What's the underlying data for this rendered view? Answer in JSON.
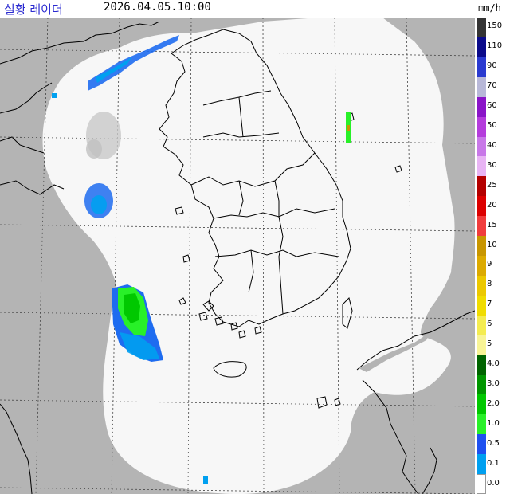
{
  "header": {
    "title": "실황 레이더",
    "timestamp": "2026.04.05.10:00",
    "unit": "mm/h"
  },
  "map": {
    "outside_color": "#b4b4b4",
    "coverage_color": "#f7f7f7",
    "coastline_color": "#000000",
    "grid_color": "#444444",
    "echoes": [
      {
        "name": "echo-northwest-sea",
        "intensity": "0.1–0.5",
        "color": "#1e6cf0"
      },
      {
        "name": "echo-west-sea",
        "intensity": "0.5",
        "color": "#1e6cf0"
      },
      {
        "name": "echo-southwest-sea",
        "intensity": "1.0–2.0",
        "color": "#22cc22"
      },
      {
        "name": "echo-east-sea-small",
        "intensity": "1.0",
        "color": "#22cc22"
      },
      {
        "name": "echo-south",
        "intensity": "0.1",
        "color": "#0aa0f0"
      }
    ]
  },
  "legend": {
    "levels": [
      {
        "label": "150",
        "color": "#333333"
      },
      {
        "label": "110",
        "color": "#0a0a8a"
      },
      {
        "label": "90",
        "color": "#2a3ad0"
      },
      {
        "label": "70",
        "color": "#b8b8d8"
      },
      {
        "label": "60",
        "color": "#8a14c8"
      },
      {
        "label": "50",
        "color": "#b43cdc"
      },
      {
        "label": "40",
        "color": "#c878e8"
      },
      {
        "label": "30",
        "color": "#e8b4f4"
      },
      {
        "label": "25",
        "color": "#b40000"
      },
      {
        "label": "20",
        "color": "#dc0000"
      },
      {
        "label": "15",
        "color": "#f03c3c"
      },
      {
        "label": "10",
        "color": "#c89600"
      },
      {
        "label": "9",
        "color": "#dcaa00"
      },
      {
        "label": "8",
        "color": "#ecc800"
      },
      {
        "label": "7",
        "color": "#f0dc00"
      },
      {
        "label": "6",
        "color": "#f4ec50"
      },
      {
        "label": "5",
        "color": "#f8f496"
      },
      {
        "label": "4.0",
        "color": "#006400"
      },
      {
        "label": "3.0",
        "color": "#009600"
      },
      {
        "label": "2.0",
        "color": "#00c800"
      },
      {
        "label": "1.0",
        "color": "#28f028"
      },
      {
        "label": "0.5",
        "color": "#1e50f0"
      },
      {
        "label": "0.1",
        "color": "#00a0f0"
      },
      {
        "label": "0.0",
        "color": "#ffffff"
      }
    ]
  }
}
